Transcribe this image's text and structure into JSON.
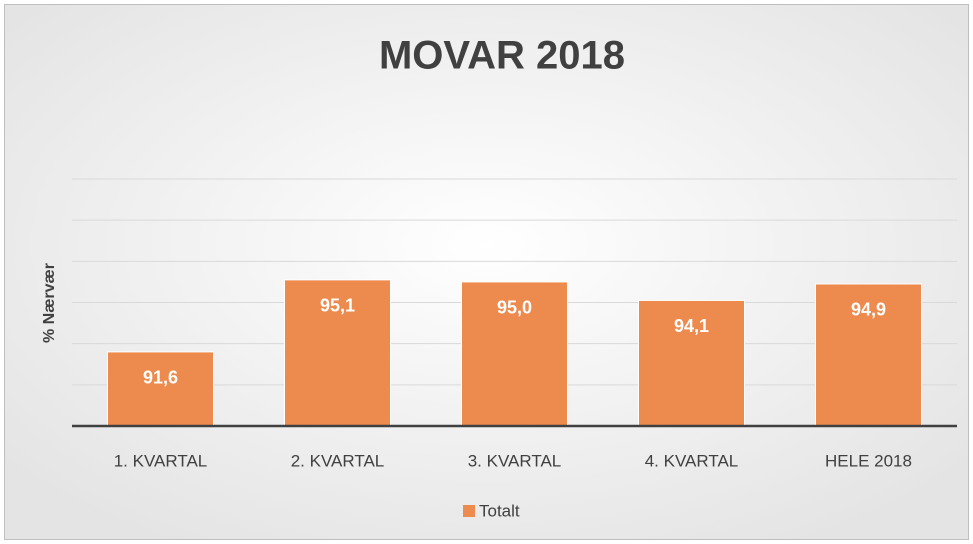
{
  "chart_data": {
    "type": "bar",
    "title": "MOVAR 2018",
    "y_label": "% Nærvær",
    "categories": [
      "1. KVARTAL",
      "2. KVARTAL",
      "3. KVARTAL",
      "4. KVARTAL",
      "HELE 2018"
    ],
    "series": [
      {
        "name": "Totalt",
        "color": "#ed8b4e",
        "values": [
          91.6,
          95.1,
          95.0,
          94.1,
          94.9
        ],
        "value_labels": [
          "91,6",
          "95,1",
          "95,0",
          "94,1",
          "94,9"
        ]
      }
    ],
    "ylim": [
      88,
      100
    ],
    "yticks": [
      88,
      90,
      92,
      94,
      96,
      98,
      100
    ],
    "grid": true,
    "legend": "bottom"
  }
}
